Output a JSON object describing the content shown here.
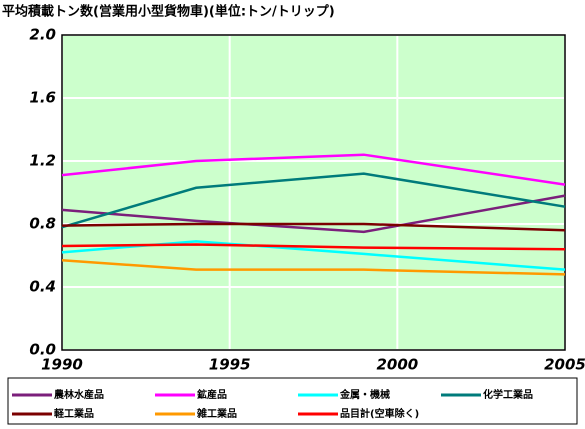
{
  "chart_data": {
    "type": "line",
    "title": "平均積載トン数(営業用小型貨物車)(単位:トン/トリップ)",
    "x": [
      1990,
      1994,
      1999,
      2005
    ],
    "series": [
      {
        "name": "農林水産品",
        "color": "#7b1f7b",
        "values": [
          0.89,
          0.82,
          0.75,
          0.98
        ]
      },
      {
        "name": "鉱産品",
        "color": "#ff00ff",
        "values": [
          1.11,
          1.2,
          1.24,
          1.05
        ]
      },
      {
        "name": "金属・機械",
        "color": "#00ffff",
        "values": [
          0.62,
          0.69,
          0.61,
          0.51
        ]
      },
      {
        "name": "化学工業品",
        "color": "#007b7b",
        "values": [
          0.78,
          1.03,
          1.12,
          0.91
        ]
      },
      {
        "name": "軽工業品",
        "color": "#7b0000",
        "values": [
          0.79,
          0.8,
          0.8,
          0.76
        ]
      },
      {
        "name": "雑工業品",
        "color": "#ff9900",
        "values": [
          0.57,
          0.51,
          0.51,
          0.48
        ]
      },
      {
        "name": "品目計(空車除く)",
        "color": "#ff0000",
        "values": [
          0.66,
          0.67,
          0.65,
          0.64
        ]
      }
    ],
    "xlim": [
      1990,
      2005
    ],
    "xticks": [
      1990,
      1995,
      2000,
      2005
    ],
    "ylim": [
      0,
      2
    ],
    "yticks": [
      {
        "value": 0,
        "label": "0.0"
      },
      0.4,
      0.8,
      1.2,
      1.6,
      {
        "value": 2,
        "label": "2.0"
      }
    ],
    "grid": true,
    "plot_background": "#ccffcc"
  }
}
